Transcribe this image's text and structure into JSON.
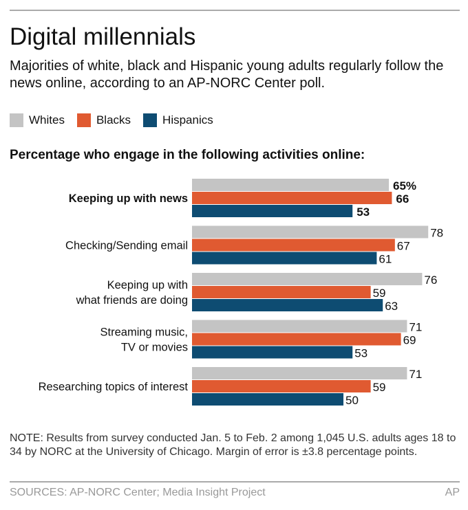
{
  "title": "Digital millennials",
  "subtitle": "Majorities of white, black and Hispanic young adults regularly follow the news online, according to an AP-NORC Center poll.",
  "heading": "Percentage who engage in the following activities online:",
  "note": "NOTE: Results from survey conducted Jan. 5 to Feb. 2 among 1,045 U.S. adults ages 18 to 34 by NORC at the University of Chicago. Margin of error is ±3.8 percentage points.",
  "sources": "SOURCES: AP-NORC Center; Media Insight Project",
  "credit": "AP",
  "chart_data": {
    "type": "bar",
    "orientation": "horizontal",
    "title": "Percentage who engage in the following activities online:",
    "categories": [
      [
        "Keeping up with news"
      ],
      [
        "Checking/Sending email"
      ],
      [
        "Keeping up with",
        "what friends are doing"
      ],
      [
        "Streaming music,",
        "TV or movies"
      ],
      [
        "Researching topics of interest"
      ]
    ],
    "bold_category_index": 0,
    "unit_suffix_first": "%",
    "series": [
      {
        "name": "Whites",
        "color": "#c4c4c4",
        "values": [
          65,
          78,
          76,
          71,
          71
        ]
      },
      {
        "name": "Blacks",
        "color": "#e05a31",
        "values": [
          66,
          67,
          59,
          69,
          59
        ]
      },
      {
        "name": "Hispanics",
        "color": "#0e4c72",
        "values": [
          53,
          61,
          63,
          53,
          50
        ]
      }
    ],
    "xlim": [
      0,
      100
    ],
    "legend": "top-left",
    "grid": false
  }
}
